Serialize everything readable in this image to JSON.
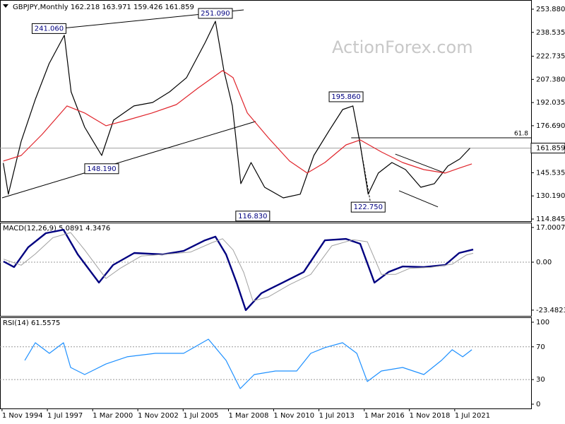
{
  "chart_data": [
    {
      "type": "line",
      "title": "GBPJPY,Monthly  162.218 163.971 159.426 161.859",
      "watermark": "ActionForex.com",
      "xlim": [
        1994.71,
        2026.0
      ],
      "ylim": [
        113.44,
        259.97
      ],
      "yticks": [
        {
          "value": 253.88,
          "label": "253.880"
        },
        238.535,
        222.735,
        {
          "value": 207.38,
          "label": "207.380"
        },
        192.035,
        {
          "value": 176.69,
          "label": "176.690"
        },
        145.535,
        {
          "value": 130.19,
          "label": "130.190"
        },
        114.845
      ],
      "series": [
        {
          "color": "#000000",
          "x": [
            1994.9,
            1995.2,
            1995.96,
            1996.8,
            1997.6,
            1998.5,
            1998.9,
            1999.7,
            2000.7,
            2001.4,
            2002.6,
            2003.7,
            2004.7,
            2005.7,
            2006.8,
            2007.4,
            2007.9,
            2008.4,
            2008.9,
            2009.5,
            2010.3,
            2011.4,
            2012.4,
            2013.2,
            2014.1,
            2014.9,
            2015.5,
            2015.9,
            2016.4,
            2017.0,
            2017.8,
            2018.6,
            2019.5,
            2020.3,
            2021.1,
            2021.8,
            2022.4
          ],
          "values": [
            152,
            131.3,
            166.4,
            194.4,
            217.8,
            236.6,
            199.1,
            175.7,
            157,
            180.4,
            189.8,
            192.1,
            199.1,
            208.5,
            231.9,
            245.9,
            213.2,
            189.8,
            138.3,
            152.3,
            135.9,
            128.9,
            131.3,
            157,
            173.4,
            187.4,
            189.8,
            166.4,
            131.3,
            145.3,
            152.3,
            147.6,
            135.9,
            138.3,
            150,
            154.7,
            161.859
          ]
        },
        {
          "color": "#e0242b",
          "x": [
            1994.9,
            1995.96,
            1997.2,
            1998.66,
            1999.7,
            2000.95,
            2002.2,
            2003.66,
            2005.1,
            2006.36,
            2007.82,
            2008.44,
            2009.28,
            2010.52,
            2011.77,
            2012.81,
            2013.85,
            2015.1,
            2015.93,
            2017.18,
            2018.43,
            2019.68,
            2020.93,
            2021.76,
            2022.51
          ],
          "values": [
            153.3,
            157,
            171,
            189.8,
            185.1,
            176.7,
            180.4,
            185.1,
            190.7,
            201.5,
            213.2,
            208.5,
            185.1,
            168.7,
            153.3,
            145.3,
            152.3,
            164,
            167.3,
            159.3,
            152.3,
            147.6,
            145.3,
            148.6,
            151.4
          ]
        }
      ],
      "annotations": [
        {
          "x": 1997.6,
          "value": 241.06,
          "label": "241.060"
        },
        {
          "x": 2007.4,
          "value": 251.09,
          "label": "251.090"
        },
        {
          "x": 2000.7,
          "value": 148.19,
          "label": "148.190"
        },
        {
          "x": 2009.6,
          "value": 116.83,
          "label": "116.830"
        },
        {
          "x": 2015.1,
          "value": 195.86,
          "label": "195.860"
        },
        {
          "x": 2016.4,
          "value": 122.75,
          "label": "122.750"
        }
      ],
      "trendlines": [
        {
          "x": [
            1998.37,
            2009.07
          ],
          "values": [
            241.24,
            253.4
          ],
          "color": "#000000"
        },
        {
          "x": [
            1994.83,
            2009.77
          ],
          "values": [
            128.9,
            179.5
          ],
          "color": "#000000"
        },
        {
          "x": [
            2018.0,
            2020.93
          ],
          "values": [
            157.9,
            145.3
          ],
          "color": "#000000"
        },
        {
          "x": [
            2018.22,
            2020.51
          ],
          "values": [
            133.6,
            122.9
          ],
          "color": "#000000"
        },
        {
          "x": [
            2015.73,
            2016.56
          ],
          "values": [
            176.7,
            124.2
          ],
          "color": "#000000",
          "dashed": true
        }
      ],
      "level": {
        "x": 2015.4,
        "value": 168.7,
        "label": "61.8"
      },
      "last_price": {
        "value": 161.859,
        "label": "161.859"
      }
    },
    {
      "type": "line",
      "title": "MACD(12,26,9) 5.0891 4.3476",
      "xlim": [
        1994.71,
        2026.0
      ],
      "ylim": [
        -26.3,
        19.38
      ],
      "yticks": [
        17.0007,
        {
          "value": 0,
          "label": "0.00"
        },
        -23.4823
      ],
      "zero_line": 0,
      "series": [
        {
          "color": "#000080",
          "width": 2.4,
          "x": [
            1994.92,
            1995.54,
            1996.37,
            1997.41,
            1998.45,
            1999.29,
            2000.54,
            2001.37,
            2002.62,
            2004.28,
            2005.53,
            2006.78,
            2007.4,
            2008.03,
            2008.65,
            2009.19,
            2010.11,
            2011.36,
            2012.6,
            2013.85,
            2015.1,
            2015.93,
            2016.77,
            2017.6,
            2018.43,
            2019.68,
            2020.93,
            2021.76,
            2022.59
          ],
          "values": [
            0.35,
            -2.4,
            7.3,
            14.2,
            15.9,
            3.8,
            -10,
            -1.4,
            4.5,
            3.8,
            5.5,
            10.7,
            12.5,
            3.8,
            -10,
            -23.5,
            -15.2,
            -10,
            -4.8,
            10.7,
            11.4,
            9,
            -10,
            -4.8,
            -2.1,
            -2.4,
            -1.4,
            4.5,
            6.2
          ]
        },
        {
          "color": "#a0a0a0",
          "width": 1,
          "x": [
            1994.92,
            1995.96,
            1996.79,
            1997.83,
            1998.87,
            1999.7,
            2000.95,
            2001.79,
            2003.03,
            2004.7,
            2005.95,
            2007.19,
            2007.82,
            2008.44,
            2009.07,
            2009.61,
            2010.52,
            2011.77,
            2013.02,
            2014.26,
            2015.51,
            2016.35,
            2017.18,
            2018.01,
            2018.85,
            2020.1,
            2021.35,
            2022.18,
            2022.59
          ],
          "values": [
            1.5,
            -1.5,
            4,
            12,
            14.5,
            6,
            -8,
            -3,
            3,
            4,
            5,
            9.5,
            11.5,
            6,
            -5,
            -19,
            -17,
            -11,
            -6,
            8,
            11,
            10,
            -6,
            -6,
            -3,
            -2.5,
            -1,
            3.5,
            4.35
          ]
        }
      ]
    },
    {
      "type": "line",
      "title": "RSI(14) 61.5575",
      "xlim": [
        1994.71,
        2026.0
      ],
      "ylim": [
        -5.2,
        106
      ],
      "yticks": [
        100,
        70,
        30,
        0
      ],
      "levels": [
        70,
        30
      ],
      "xticks": [
        {
          "value": 1994.83,
          "label": "1 Nov 1994"
        },
        {
          "value": 1997.5,
          "label": "1 Jul 1997"
        },
        {
          "value": 2000.17,
          "label": "1 Mar 2000"
        },
        {
          "value": 2002.83,
          "label": "1 Nov 2002"
        },
        {
          "value": 2005.5,
          "label": "1 Jul 2005"
        },
        {
          "value": 2008.17,
          "label": "1 Mar 2008"
        },
        {
          "value": 2010.83,
          "label": "1 Nov 2010"
        },
        {
          "value": 2013.5,
          "label": "1 Jul 2013"
        },
        {
          "value": 2016.17,
          "label": "1 Mar 2016"
        },
        {
          "value": 2018.83,
          "label": "1 Nov 2018"
        },
        {
          "value": 2021.5,
          "label": "1 Jul 2021"
        }
      ],
      "series": [
        {
          "color": "#1e90ff",
          "x": [
            1996.17,
            1996.79,
            1997.62,
            1998.45,
            1998.87,
            1999.7,
            2000.95,
            2002.2,
            2003.86,
            2005.53,
            2006.99,
            2008.03,
            2008.86,
            2009.69,
            2010.94,
            2012.19,
            2013.02,
            2013.85,
            2014.89,
            2015.73,
            2016.35,
            2017.18,
            2018.43,
            2019.68,
            2020.72,
            2021.35,
            2021.97,
            2022.51
          ],
          "values": [
            53.4,
            75,
            62,
            75,
            44.8,
            36.2,
            49,
            57.8,
            62,
            62,
            79.3,
            53.4,
            19,
            36.2,
            40.5,
            40.5,
            62,
            69,
            75,
            62,
            27.6,
            40.5,
            44.8,
            36.2,
            53.4,
            66.4,
            57.8,
            66.4
          ]
        }
      ]
    }
  ]
}
